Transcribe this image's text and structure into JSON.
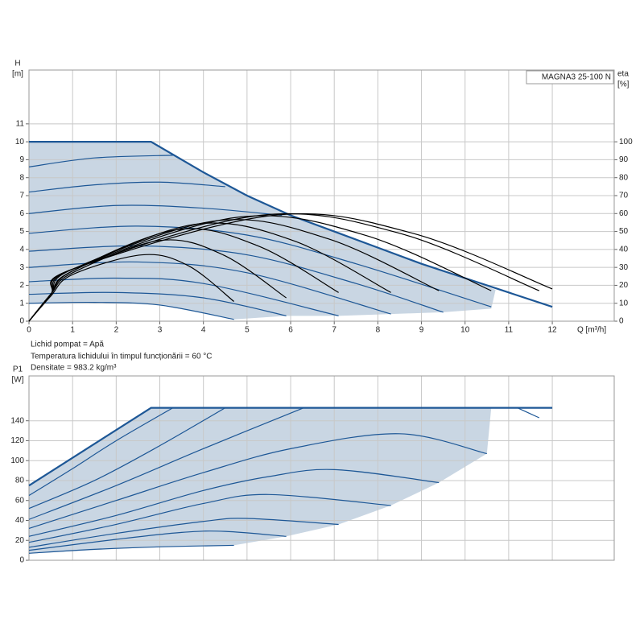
{
  "chart_data": [
    {
      "type": "line",
      "title": "MAGNA3 25-100 N",
      "ylabel": "H",
      "yunit": "[m]",
      "y2label": "eta",
      "y2unit": "[%]",
      "xlabel": "Q [m³/h]",
      "notes": [
        "Lichid pompat = Apă",
        "Temperatura lichidului în timpul funcționării = 60 °C",
        "Densitate = 983.2 kg/m³"
      ],
      "xlim": [
        0,
        13.42
      ],
      "xticks": [
        0,
        1,
        2,
        3,
        4,
        5,
        6,
        7,
        8,
        9,
        10,
        11,
        12
      ],
      "ylim": [
        0,
        14
      ],
      "yticks": [
        0,
        1,
        2,
        3,
        4,
        5,
        6,
        7,
        8,
        9,
        10,
        11
      ],
      "y2lim": [
        0,
        140
      ],
      "y2ticks": [
        0,
        10,
        20,
        30,
        40,
        50,
        60,
        70,
        80,
        90,
        100
      ],
      "grid": true,
      "area": {
        "color": "#c9d6e3",
        "x": [
          0,
          2.8,
          4,
          5,
          6,
          7,
          8,
          9,
          10,
          10.7,
          10.6,
          9.5,
          8.3,
          7.1,
          5.9,
          4.7,
          3,
          1.5,
          0
        ],
        "values": [
          10,
          10,
          8.3,
          7,
          5.9,
          5,
          4.1,
          3.2,
          2.4,
          1.75,
          0.7,
          0.5,
          0.4,
          0.3,
          0.3,
          0.1,
          0.9,
          1.05,
          1.0
        ]
      },
      "series": [
        {
          "color": "#1d5796",
          "smooth": false,
          "x": [
            0,
            2.8,
            4,
            5,
            6,
            7,
            8,
            9,
            10,
            11,
            12
          ],
          "values": [
            10,
            10,
            8.3,
            7,
            5.9,
            5,
            4.1,
            3.2,
            2.4,
            1.6,
            0.8
          ]
        },
        {
          "color": "#1d5796",
          "x": [
            0,
            1.5,
            3.3
          ],
          "values": [
            8.6,
            9.1,
            9.25
          ]
        },
        {
          "color": "#1d5796",
          "x": [
            0,
            1.5,
            3,
            4.5
          ],
          "values": [
            7.2,
            7.6,
            7.75,
            7.5
          ]
        },
        {
          "color": "#1d5796",
          "x": [
            0,
            2,
            4,
            5.8
          ],
          "values": [
            6.0,
            6.45,
            6.3,
            5.9
          ]
        },
        {
          "color": "#1d5796",
          "x": [
            0,
            2.5,
            5,
            7.5,
            10.6
          ],
          "values": [
            4.9,
            5.3,
            4.8,
            3.2,
            0.8
          ]
        },
        {
          "color": "#1d5796",
          "x": [
            0,
            2.5,
            5,
            7.5,
            9.5
          ],
          "values": [
            3.9,
            4.2,
            3.7,
            2.1,
            0.5
          ]
        },
        {
          "color": "#1d5796",
          "x": [
            0,
            2.5,
            5,
            8.3
          ],
          "values": [
            3.0,
            3.3,
            2.7,
            0.4
          ]
        },
        {
          "color": "#1d5796",
          "x": [
            0,
            2,
            4,
            7.1
          ],
          "values": [
            2.2,
            2.4,
            2.1,
            0.3
          ]
        },
        {
          "color": "#1d5796",
          "x": [
            0,
            2,
            4,
            5.9
          ],
          "values": [
            1.5,
            1.6,
            1.3,
            0.3
          ]
        },
        {
          "color": "#1d5796",
          "x": [
            0,
            1.5,
            3,
            4.7
          ],
          "values": [
            1.0,
            1.05,
            0.9,
            0.1
          ]
        },
        {
          "color": "#000000",
          "axis": "y2",
          "x": [
            0,
            0.5,
            1,
            2.6,
            3.65,
            4.7
          ],
          "values": [
            0,
            14,
            26,
            37,
            31,
            11
          ]
        },
        {
          "color": "#000000",
          "axis": "y2",
          "x": [
            0,
            0.5,
            1,
            3.0,
            4.45,
            5.9
          ],
          "values": [
            0,
            15,
            27,
            45,
            37,
            13
          ]
        },
        {
          "color": "#000000",
          "axis": "y2",
          "x": [
            0,
            0.5,
            1,
            3.4,
            5.25,
            7.1
          ],
          "values": [
            0,
            15,
            28,
            51,
            42,
            16
          ]
        },
        {
          "color": "#000000",
          "axis": "y2",
          "x": [
            0,
            0.5,
            1,
            3.8,
            6.05,
            8.3
          ],
          "values": [
            0,
            15,
            28,
            54,
            45,
            16
          ]
        },
        {
          "color": "#000000",
          "axis": "y2",
          "x": [
            0,
            0.5,
            1,
            4.3,
            6.85,
            9.4
          ],
          "values": [
            0,
            15,
            29,
            56,
            46,
            17
          ]
        },
        {
          "color": "#000000",
          "axis": "y2",
          "x": [
            0,
            0.5,
            1,
            4.8,
            7.7,
            10.6
          ],
          "values": [
            0,
            15,
            29,
            58,
            48,
            17
          ]
        },
        {
          "color": "#000000",
          "axis": "y2",
          "x": [
            0,
            0.5,
            1,
            5.3,
            8.5,
            11.7
          ],
          "values": [
            0,
            15,
            29,
            59,
            49,
            17
          ]
        },
        {
          "color": "#000000",
          "axis": "y2",
          "x": [
            0,
            0.5,
            1,
            5.6,
            8.8,
            12.0
          ],
          "values": [
            0,
            15,
            29,
            59,
            49,
            18
          ]
        }
      ]
    },
    {
      "type": "line",
      "ylabel": "P1",
      "yunit": "[W]",
      "sharex": true,
      "xlim": [
        0,
        13.42
      ],
      "ylim": [
        0,
        185
      ],
      "yticks": [
        0,
        20,
        40,
        60,
        80,
        100,
        120,
        140
      ],
      "grid": true,
      "area": {
        "color": "#c9d6e3",
        "x": [
          0,
          2.8,
          10.6,
          10.5,
          9.4,
          8.3,
          7.1,
          5.9,
          4.7,
          3,
          0
        ],
        "values": [
          75,
          153,
          153,
          107,
          78,
          55,
          36,
          24,
          15,
          13.5,
          7
        ]
      },
      "series": [
        {
          "color": "#1d5796",
          "smooth": false,
          "x": [
            0,
            2.8,
            12
          ],
          "values": [
            75,
            153,
            153
          ]
        },
        {
          "color": "#1d5796",
          "x": [
            0,
            1,
            2,
            3.3
          ],
          "values": [
            65,
            92,
            120,
            153
          ]
        },
        {
          "color": "#1d5796",
          "x": [
            0,
            1.5,
            3,
            4.5
          ],
          "values": [
            52,
            80,
            115,
            153
          ]
        },
        {
          "color": "#1d5796",
          "x": [
            0,
            2,
            4,
            6.3
          ],
          "values": [
            41,
            75,
            112,
            153
          ]
        },
        {
          "color": "#1d5796",
          "x": [
            0,
            2,
            4,
            6,
            8.5,
            10.5
          ],
          "values": [
            32,
            60,
            88,
            112,
            127,
            107
          ]
        },
        {
          "color": "#1d5796",
          "x": [
            0,
            2,
            4,
            5.5,
            7,
            9.4
          ],
          "values": [
            24,
            45,
            70,
            84,
            91,
            78
          ]
        },
        {
          "color": "#1d5796",
          "x": [
            0,
            2,
            4,
            5.5,
            8.3
          ],
          "values": [
            18,
            36,
            57,
            66,
            55
          ]
        },
        {
          "color": "#1d5796",
          "x": [
            0,
            2,
            4,
            5,
            7.1
          ],
          "values": [
            13,
            27,
            39,
            42,
            36
          ]
        },
        {
          "color": "#1d5796",
          "x": [
            0,
            2,
            3.5,
            4.5,
            5.9
          ],
          "values": [
            10,
            21,
            28,
            29,
            24
          ]
        },
        {
          "color": "#1d5796",
          "x": [
            0,
            1.5,
            3,
            4.7
          ],
          "values": [
            7,
            11,
            13.5,
            15
          ]
        },
        {
          "color": "#1d5796",
          "x": [
            11.2,
            11.7
          ],
          "values": [
            153,
            143
          ]
        }
      ]
    }
  ]
}
